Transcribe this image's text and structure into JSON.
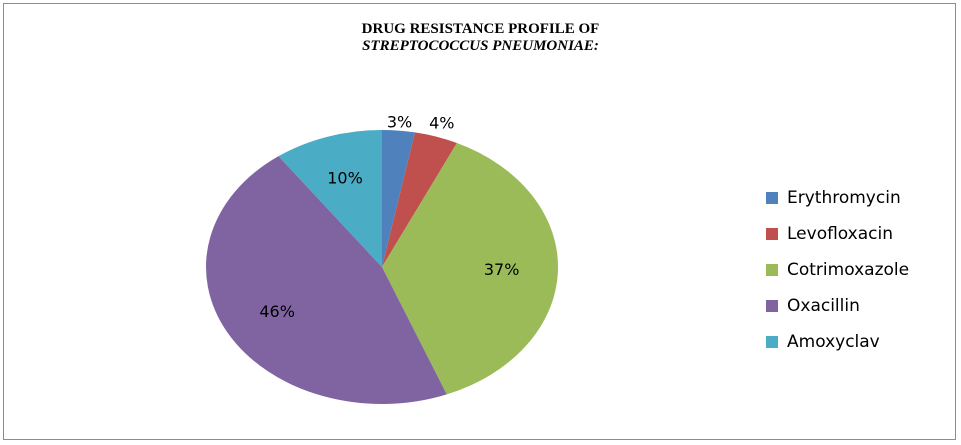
{
  "chart_data": {
    "type": "pie",
    "title_line1": "DRUG RESISTANCE PROFILE OF",
    "title_line2": "STREPTOCOCCUS PNEUMONIAE:",
    "slices": [
      {
        "name": "Erythromycin",
        "value": 3,
        "label": "3%",
        "color": "#4f81bd"
      },
      {
        "name": "Levofloxacin",
        "value": 4,
        "label": "4%",
        "color": "#c0504d"
      },
      {
        "name": "Cotrimoxazole",
        "value": 37,
        "label": "37%",
        "color": "#9bbb59"
      },
      {
        "name": "Oxacillin",
        "value": 46,
        "label": "46%",
        "color": "#8064a2"
      },
      {
        "name": "Amoxyclav",
        "value": 10,
        "label": "10%",
        "color": "#4bacc6"
      }
    ],
    "legend_position": "right"
  }
}
